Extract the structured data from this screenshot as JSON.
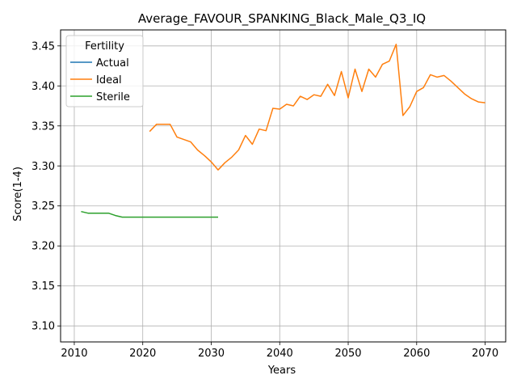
{
  "chart_data": {
    "type": "line",
    "title": "Average_FAVOUR_SPANKING_Black_Male_Q3_IQ",
    "xlabel": "Years",
    "ylabel": "Score(1-4)",
    "xlim": [
      2008,
      2073
    ],
    "ylim": [
      3.08,
      3.47
    ],
    "xticks": [
      2010,
      2020,
      2030,
      2040,
      2050,
      2060,
      2070
    ],
    "yticks": [
      3.1,
      3.15,
      3.2,
      3.25,
      3.3,
      3.35,
      3.4,
      3.45
    ],
    "xtick_labels": [
      "2010",
      "2020",
      "2030",
      "2040",
      "2050",
      "2060",
      "2070"
    ],
    "ytick_labels": [
      "3.10",
      "3.15",
      "3.20",
      "3.25",
      "3.30",
      "3.35",
      "3.40",
      "3.45"
    ],
    "grid": true,
    "legend": {
      "title": "Fertility",
      "placement": "top-left"
    },
    "series": [
      {
        "name": "Actual",
        "color": "#1f77b4",
        "x": [],
        "y": []
      },
      {
        "name": "Ideal",
        "color": "#ff7f0e",
        "x": [
          2021,
          2022,
          2023,
          2024,
          2025,
          2026,
          2027,
          2028,
          2029,
          2030,
          2031,
          2032,
          2033,
          2034,
          2035,
          2036,
          2037,
          2038,
          2039,
          2040,
          2041,
          2042,
          2043,
          2044,
          2045,
          2046,
          2047,
          2048,
          2049,
          2050,
          2051,
          2052,
          2053,
          2054,
          2055,
          2056,
          2057,
          2058,
          2059,
          2060,
          2061,
          2062,
          2063,
          2064,
          2065,
          2066,
          2067,
          2068,
          2069,
          2070
        ],
        "y": [
          3.343,
          3.352,
          3.352,
          3.352,
          3.336,
          3.333,
          3.33,
          3.32,
          3.313,
          3.305,
          3.295,
          3.304,
          3.311,
          3.32,
          3.338,
          3.327,
          3.346,
          3.344,
          3.372,
          3.371,
          3.377,
          3.375,
          3.387,
          3.383,
          3.389,
          3.387,
          3.402,
          3.388,
          3.418,
          3.385,
          3.421,
          3.393,
          3.421,
          3.411,
          3.427,
          3.431,
          3.452,
          3.363,
          3.374,
          3.393,
          3.398,
          3.414,
          3.411,
          3.413,
          3.406,
          3.398,
          3.39,
          3.384,
          3.38,
          3.379
        ]
      },
      {
        "name": "Sterile",
        "color": "#2ca02c",
        "x": [
          2011,
          2012,
          2013,
          2014,
          2015,
          2016,
          2017,
          2018,
          2019,
          2020,
          2021,
          2022,
          2023,
          2024,
          2025,
          2026,
          2027,
          2028,
          2029,
          2030,
          2031
        ],
        "y": [
          3.243,
          3.241,
          3.241,
          3.241,
          3.241,
          3.238,
          3.236,
          3.236,
          3.236,
          3.236,
          3.236,
          3.236,
          3.236,
          3.236,
          3.236,
          3.236,
          3.236,
          3.236,
          3.236,
          3.236,
          3.236
        ]
      }
    ]
  }
}
